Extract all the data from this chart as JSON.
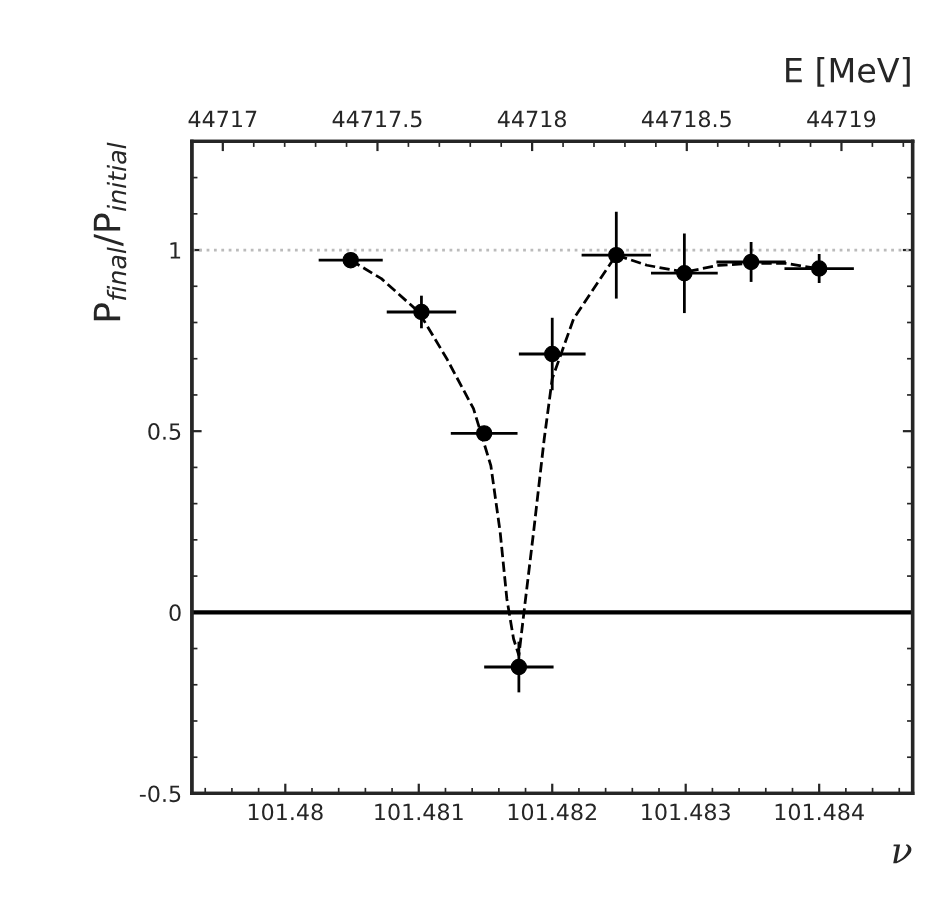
{
  "chart_data": {
    "type": "scatter",
    "xlabel": "ν",
    "ylabel": "P$_{final}$/P$_{initial}$",
    "x2label": "E [MeV]",
    "xlim": [
      101.4793,
      101.4847
    ],
    "xticks": [
      101.48,
      101.481,
      101.482,
      101.483,
      101.484
    ],
    "x2lim": [
      44716.9,
      44719.23
    ],
    "x2ticks": [
      44717,
      44717.5,
      44718,
      44718.5,
      44719
    ],
    "ylim": [
      -0.5,
      1.3
    ],
    "yticks": [
      -0.5,
      0,
      0.5,
      1
    ],
    "grid": false,
    "legend": false,
    "ref_lines": [
      {
        "axis": "y",
        "value": 1,
        "color": "#bbbbbb",
        "line_style": "dotted"
      },
      {
        "axis": "y",
        "value": 0,
        "color": "#000000",
        "line_style": "solid"
      }
    ],
    "series": [
      {
        "type": "line",
        "color": "#000000",
        "line_style": "dashed",
        "marker": "none",
        "x": [
          101.48049,
          101.48072,
          101.481,
          101.48121,
          101.48141,
          101.48154,
          101.48161,
          101.48166,
          101.48171,
          101.48175,
          101.4818,
          101.48186,
          101.48194,
          101.482,
          101.48216,
          101.48236,
          101.48248,
          101.48271,
          101.48299,
          101.48325,
          101.48349,
          101.48375,
          101.48399
        ],
        "values": [
          0.972,
          0.921,
          0.829,
          0.7,
          0.562,
          0.405,
          0.221,
          0.037,
          -0.073,
          -0.119,
          0.037,
          0.221,
          0.479,
          0.645,
          0.81,
          0.921,
          0.986,
          0.958,
          0.939,
          0.958,
          0.963,
          0.963,
          0.949
        ]
      },
      {
        "color": "#000000",
        "marker": "circle",
        "x": [
          101.48049,
          101.48102,
          101.48149,
          101.48175,
          101.482,
          101.48248,
          101.48299,
          101.48349,
          101.484
        ],
        "values": [
          0.972,
          0.829,
          0.494,
          -0.151,
          0.713,
          0.986,
          0.936,
          0.967,
          0.949
        ],
        "errors": [
          0.02,
          0.045,
          0.02,
          0.07,
          0.1,
          0.12,
          0.11,
          0.055,
          0.04
        ],
        "xerrors": [
          0.00024,
          0.00026,
          0.00025,
          0.00026,
          0.00025,
          0.00026,
          0.00025,
          0.00026,
          0.00026
        ]
      }
    ]
  }
}
